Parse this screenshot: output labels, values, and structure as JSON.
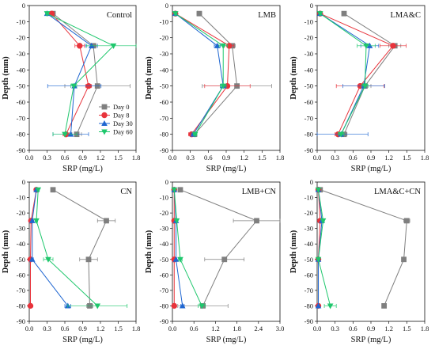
{
  "colors": {
    "Day 0": "#7f7f7f",
    "Day 8": "#e8333b",
    "Day 30": "#1f66d1",
    "Day 60": "#1ec76c"
  },
  "chart_data": [
    {
      "type": "line",
      "title": "Control",
      "xlabel": "SRP (mg/L)",
      "ylabel": "Depth (mm)",
      "xlim": [
        0,
        1.8
      ],
      "ylim": [
        -90,
        0
      ],
      "xticks": [
        "0.0",
        "0.3",
        "0.6",
        "0.9",
        "1.2",
        "1.5",
        "1.8"
      ],
      "yticks": [
        "0",
        "-10",
        "-20",
        "-30",
        "-40",
        "-50",
        "-60",
        "-70",
        "-80",
        "-90"
      ],
      "legend": [
        "Day 0",
        "Day 8",
        "Day 30",
        "Day 60"
      ],
      "legend_position": "bottom-right",
      "depths": [
        -5,
        -25,
        -50,
        -80
      ],
      "series": [
        {
          "name": "Day 0",
          "marker": "square",
          "values": [
            0.4,
            1.08,
            1.15,
            0.8
          ],
          "errors": [
            0.03,
            0.05,
            0.55,
            0.08
          ]
        },
        {
          "name": "Day 8",
          "marker": "circle",
          "values": [
            0.38,
            0.85,
            1.0,
            0.62
          ],
          "errors": [
            0.03,
            0.08,
            0.05,
            0.05
          ]
        },
        {
          "name": "Day 30",
          "marker": "triangle-up",
          "values": [
            0.3,
            1.05,
            0.76,
            0.7
          ],
          "errors": [
            0.02,
            0.1,
            0.45,
            0.3
          ]
        },
        {
          "name": "Day 60",
          "marker": "triangle-down",
          "values": [
            0.3,
            1.42,
            0.75,
            0.6
          ],
          "errors": [
            0.02,
            0.45,
            0.05,
            0.2
          ]
        }
      ]
    },
    {
      "type": "line",
      "title": "LMB",
      "xlabel": "SRP (mg/L)",
      "ylabel": "Depth (mm)",
      "xlim": [
        0,
        1.8
      ],
      "ylim": [
        -90,
        0
      ],
      "xticks": [
        "0.0",
        "0.3",
        "0.6",
        "0.9",
        "1.2",
        "1.5",
        "1.8"
      ],
      "yticks": [
        "0",
        "-10",
        "-20",
        "-30",
        "-40",
        "-50",
        "-60",
        "-70",
        "-80",
        "-90"
      ],
      "depths": [
        -5,
        -25,
        -50,
        -80
      ],
      "series": [
        {
          "name": "Day 0",
          "marker": "square",
          "values": [
            0.45,
            1.0,
            1.08,
            0.37
          ],
          "errors": [
            0.04,
            0.05,
            0.58,
            0.03
          ]
        },
        {
          "name": "Day 8",
          "marker": "circle",
          "values": [
            0.05,
            0.95,
            0.92,
            0.32
          ],
          "errors": [
            0.01,
            0.08,
            0.38,
            0.05
          ]
        },
        {
          "name": "Day 30",
          "marker": "triangle-up",
          "values": [
            0.05,
            0.75,
            0.85,
            0.35
          ],
          "errors": [
            0.01,
            0.05,
            0.05,
            0.03
          ]
        },
        {
          "name": "Day 60",
          "marker": "triangle-down",
          "values": [
            0.05,
            0.85,
            0.85,
            0.38
          ],
          "errors": [
            0.01,
            0.07,
            0.05,
            0.03
          ]
        }
      ]
    },
    {
      "type": "line",
      "title": "LMA&C",
      "xlabel": "SRP (mg/L)",
      "ylabel": "Depth (mm)",
      "xlim": [
        0,
        1.8
      ],
      "ylim": [
        -90,
        0
      ],
      "xticks": [
        "0.0",
        "0.3",
        "0.6",
        "0.9",
        "1.2",
        "1.5",
        "1.8"
      ],
      "yticks": [
        "0",
        "-10",
        "-20",
        "-30",
        "-40",
        "-50",
        "-60",
        "-70",
        "-80",
        "-90"
      ],
      "depths": [
        -5,
        -25,
        -50,
        -80
      ],
      "series": [
        {
          "name": "Day 0",
          "marker": "square",
          "values": [
            0.45,
            1.3,
            0.8,
            0.45
          ],
          "errors": [
            0.02,
            0.1,
            0.1,
            0.05
          ]
        },
        {
          "name": "Day 8",
          "marker": "circle",
          "values": [
            0.05,
            1.27,
            0.72,
            0.35
          ],
          "errors": [
            0.01,
            0.22,
            0.4,
            0.05
          ]
        },
        {
          "name": "Day 30",
          "marker": "triangle-up",
          "values": [
            0.05,
            0.88,
            0.78,
            0.4
          ],
          "errors": [
            0.01,
            0.15,
            0.35,
            0.45
          ]
        },
        {
          "name": "Day 60",
          "marker": "triangle-down",
          "values": [
            0.05,
            0.82,
            0.8,
            0.4
          ],
          "errors": [
            0.01,
            0.15,
            0.05,
            0.05
          ]
        }
      ]
    },
    {
      "type": "line",
      "title": "CN",
      "xlabel": "SRP (mg/L)",
      "ylabel": "Depth (mm)",
      "xlim": [
        0,
        1.8
      ],
      "ylim": [
        -90,
        0
      ],
      "xticks": [
        "0.0",
        "0.3",
        "0.6",
        "0.9",
        "1.2",
        "1.5",
        "1.8"
      ],
      "yticks": [
        "0",
        "-10",
        "-20",
        "-30",
        "-40",
        "-50",
        "-60",
        "-70",
        "-80",
        "-90"
      ],
      "depths": [
        -5,
        -25,
        -50,
        -80
      ],
      "series": [
        {
          "name": "Day 0",
          "marker": "square",
          "values": [
            0.4,
            1.3,
            1.0,
            1.02
          ],
          "errors": [
            0.03,
            0.15,
            0.15,
            0.05
          ]
        },
        {
          "name": "Day 8",
          "marker": "circle",
          "values": [
            0.12,
            0.03,
            0.02,
            0.02
          ],
          "errors": [
            0.02,
            0.02,
            0.01,
            0.01
          ]
        },
        {
          "name": "Day 30",
          "marker": "triangle-up",
          "values": [
            0.12,
            0.05,
            0.05,
            0.65
          ],
          "errors": [
            0.02,
            0.02,
            0.02,
            0.05
          ]
        },
        {
          "name": "Day 60",
          "marker": "triangle-down",
          "values": [
            0.15,
            0.12,
            0.32,
            1.15
          ],
          "errors": [
            0.02,
            0.02,
            0.08,
            0.5
          ]
        }
      ]
    },
    {
      "type": "line",
      "title": "LMB+CN",
      "xlabel": "SRP (mg/L)",
      "ylabel": "Depth (mm)",
      "xlim": [
        0,
        3.0
      ],
      "ylim": [
        -90,
        0
      ],
      "xticks": [
        "0.0",
        "0.6",
        "1.2",
        "1.8",
        "2.4",
        "3.0"
      ],
      "yticks": [
        "0",
        "-10",
        "-20",
        "-30",
        "-40",
        "-50",
        "-60",
        "-70",
        "-80",
        "-90"
      ],
      "depths": [
        -5,
        -25,
        -50,
        -80
      ],
      "series": [
        {
          "name": "Day 0",
          "marker": "square",
          "values": [
            0.22,
            2.35,
            1.45,
            0.85
          ],
          "errors": [
            0.05,
            0.65,
            0.55,
            0.7
          ]
        },
        {
          "name": "Day 8",
          "marker": "circle",
          "values": [
            0.05,
            0.05,
            0.05,
            0.05
          ],
          "errors": [
            0.01,
            0.01,
            0.01,
            0.01
          ]
        },
        {
          "name": "Day 30",
          "marker": "triangle-up",
          "values": [
            0.05,
            0.1,
            0.1,
            0.28
          ],
          "errors": [
            0.01,
            0.02,
            0.02,
            0.05
          ]
        },
        {
          "name": "Day 60",
          "marker": "triangle-down",
          "values": [
            0.05,
            0.12,
            0.22,
            0.82
          ],
          "errors": [
            0.01,
            0.02,
            0.05,
            0.1
          ]
        }
      ]
    },
    {
      "type": "line",
      "title": "LMA&C+CN",
      "xlabel": "SRP (mg/L)",
      "ylabel": "Depth (mm)",
      "xlim": [
        0,
        1.8
      ],
      "ylim": [
        -90,
        0
      ],
      "xticks": [
        "0.0",
        "0.3",
        "0.6",
        "0.9",
        "1.2",
        "1.5",
        "1.8"
      ],
      "yticks": [
        "0",
        "-10",
        "-20",
        "-30",
        "-40",
        "-50",
        "-60",
        "-70",
        "-80",
        "-90"
      ],
      "depths": [
        -5,
        -25,
        -50,
        -80
      ],
      "series": [
        {
          "name": "Day 0",
          "marker": "square",
          "values": [
            0.05,
            1.5,
            1.45,
            1.12
          ],
          "errors": [
            0.02,
            0.05,
            0.03,
            0.03
          ]
        },
        {
          "name": "Day 8",
          "marker": "circle",
          "values": [
            0.02,
            0.05,
            0.02,
            0.02
          ],
          "errors": [
            0.01,
            0.02,
            0.01,
            0.01
          ]
        },
        {
          "name": "Day 30",
          "marker": "triangle-up",
          "values": [
            0.02,
            0.08,
            0.02,
            0.02
          ],
          "errors": [
            0.01,
            0.02,
            0.01,
            0.01
          ]
        },
        {
          "name": "Day 60",
          "marker": "triangle-down",
          "values": [
            0.02,
            0.1,
            0.02,
            0.22
          ],
          "errors": [
            0.01,
            0.02,
            0.01,
            0.1
          ]
        }
      ]
    }
  ]
}
